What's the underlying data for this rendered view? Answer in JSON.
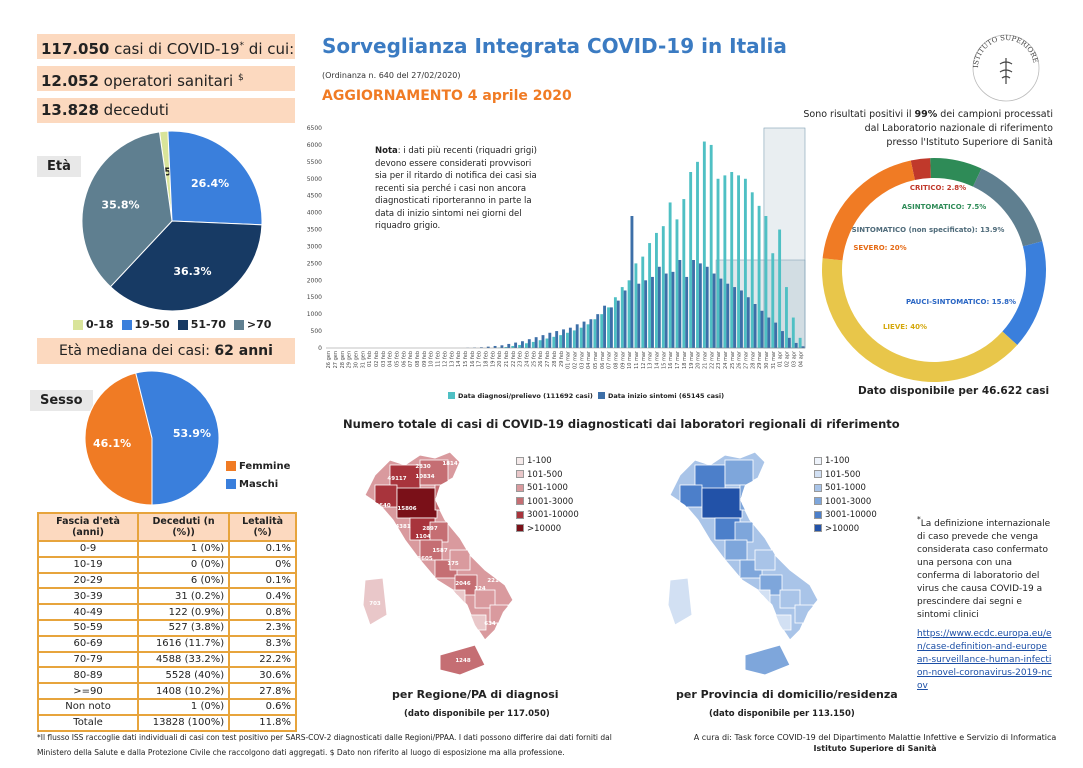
{
  "header": {
    "title": "Sorveglianza Integrata COVID-19 in Italia",
    "ordinance": "(Ordinanza n. 640 del 27/02/2020)",
    "update": "AGGIORNAMENTO 4 aprile 2020",
    "logo_text": "ISTITUTO SUPERIORE DI SANITÀ"
  },
  "summary": {
    "cases_num": "117.050",
    "cases_text": "casi di COVID-19",
    "cases_suffix": "di cui:",
    "cases_mark": "*",
    "healthcare_num": "12.052",
    "healthcare_text": "operatori sanitari",
    "healthcare_mark": "$",
    "deaths_num": "13.828",
    "deaths_text": "deceduti"
  },
  "age": {
    "label": "Età",
    "median_label": "Età mediana dei casi:",
    "median_value": "62 anni"
  },
  "sex": {
    "label": "Sesso"
  },
  "age_table": {
    "headers": [
      "Fascia d'età (anni)",
      "Deceduti (n (%))",
      "Letalità (%)"
    ],
    "rows": [
      [
        "0-9",
        "1 (0%)",
        "0.1%"
      ],
      [
        "10-19",
        "0 (0%)",
        "0%"
      ],
      [
        "20-29",
        "6 (0%)",
        "0.1%"
      ],
      [
        "30-39",
        "31 (0.2%)",
        "0.4%"
      ],
      [
        "40-49",
        "122 (0.9%)",
        "0.8%"
      ],
      [
        "50-59",
        "527 (3.8%)",
        "2.3%"
      ],
      [
        "60-69",
        "1616 (11.7%)",
        "8.3%"
      ],
      [
        "70-79",
        "4588 (33.2%)",
        "22.2%"
      ],
      [
        "80-89",
        "5528 (40%)",
        "30.6%"
      ],
      [
        ">=90",
        "1408 (10.2%)",
        "27.8%"
      ],
      [
        "Non noto",
        "1 (0%)",
        "0.6%"
      ],
      [
        "Totale",
        "13828 (100%)",
        "11.8%"
      ]
    ]
  },
  "note": {
    "bold": "Nota",
    "text": ": i dati più recenti (riquadri grigi) devono essere considerati provvisori sia per il ritardo di notifica dei casi sia recenti sia perché i casi non ancora diagnosticati riporteranno in parte la data di inizio sintomi nei giorni del riquadro grigio."
  },
  "lab": {
    "line1a": "Sono risultati positivi il ",
    "line1b": "99%",
    "line1c": " dei campioni processati",
    "line2": "dal Laboratorio nazionale di riferimento",
    "line3": "presso l'Istituto Superiore di Sanità",
    "available": "Dato disponibile per 46.622 casi"
  },
  "maps": {
    "title": "Numero totale di casi di COVID-19 diagnosticati dai laboratori regionali di riferimento",
    "region_caption": "per Regione/PA di diagnosi",
    "region_sub": "(dato disponibile per 117.050)",
    "province_caption": "per Provincia di domicilio/residenza",
    "province_sub": "(dato disponibile per 113.150)",
    "legend": [
      "1-100",
      "101-500",
      "501-1000",
      "1001-3000",
      "3001-10000",
      ">10000"
    ],
    "region_colors": [
      "#f5eaea",
      "#e9c7c9",
      "#d99a9e",
      "#c56e73",
      "#a8343c",
      "#7a1018"
    ],
    "province_colors": [
      "#eef3fb",
      "#d2e0f3",
      "#a9c4e8",
      "#7ea6db",
      "#4c7fca",
      "#2252a8"
    ],
    "region_values": [
      {
        "label": "1581"
      },
      {
        "label": "1814"
      },
      {
        "label": "2830"
      },
      {
        "label": "835"
      },
      {
        "label": "49117"
      },
      {
        "label": "10834"
      },
      {
        "label": "9993"
      },
      {
        "label": "2640"
      },
      {
        "label": "15806"
      },
      {
        "label": "4381"
      },
      {
        "label": "2897"
      },
      {
        "label": "1104"
      },
      {
        "label": "1587"
      },
      {
        "label": "3605"
      },
      {
        "label": "175"
      },
      {
        "label": "2046"
      },
      {
        "label": "2216"
      },
      {
        "label": "124"
      },
      {
        "label": "634"
      },
      {
        "label": "703"
      },
      {
        "label": "1248"
      }
    ]
  },
  "definition": {
    "mark": "*",
    "text": "La definizione internazionale di caso prevede che venga considerata caso confermato una persona con una conferma di laboratorio del virus che causa COVID-19 a prescindere dai segni e sintomi clinici",
    "link": "https://www.ecdc.europa.eu/en/case-definition-and-european-surveillance-human-infection-novel-coronavirus-2019-ncov"
  },
  "footer": {
    "left1": "*Il flusso ISS raccoglie dati individuali di casi con test positivo per SARS-COV-2 diagnosticati dalle Regioni/PPAA. I dati possono differire dai dati forniti dal",
    "left2": "Ministero della Salute e dalla Protezione Civile che raccolgono dati aggregati.",
    "left2b": "$ Dato non riferito al luogo di esposizione ma alla professione.",
    "right1": "A cura di:  Task force  COVID-19 del Dipartimento Malattie Infettive e Servizio di Informatica",
    "right2": "Istituto Superiore di Sanità"
  },
  "colors": {
    "orange": "#f07b24",
    "blue_title": "#3b7bc2",
    "peach": "#fcd9bf",
    "teal": "#4fc0c4",
    "darkblue": "#3d6fa8"
  },
  "chart_data": [
    {
      "type": "pie",
      "name": "age",
      "labels": [
        "0-18",
        "19-50",
        "51-70",
        ">70"
      ],
      "values": [
        1.5,
        26.4,
        36.3,
        35.8
      ],
      "colors": [
        "#d9e49a",
        "#3a7fdc",
        "#173a64",
        "#5f7f90"
      ]
    },
    {
      "type": "pie",
      "name": "sex",
      "labels": [
        "Femmine",
        "Maschi"
      ],
      "values": [
        46.1,
        53.9
      ],
      "colors": [
        "#f07b24",
        "#3a7fdc"
      ]
    },
    {
      "type": "pie",
      "name": "clinical_status",
      "labels": [
        "CRITICO: 2.8%",
        "ASINTOMATICO: 7.5%",
        "SINTOMATICO (non specificato): 13.9%",
        "PAUCI-SINTOMATICO: 15.8%",
        "LIEVE: 40%",
        "SEVERO: 20%"
      ],
      "values": [
        2.8,
        7.5,
        13.9,
        15.8,
        40,
        20
      ],
      "colors": [
        "#c0392b",
        "#2e8b57",
        "#5f7f90",
        "#3a7fdc",
        "#e8c64a",
        "#f07b24"
      ]
    },
    {
      "type": "bar",
      "name": "daily_cases",
      "categories": [
        "26 gen",
        "27 gen",
        "28 gen",
        "29 gen",
        "30 gen",
        "31 gen",
        "01 feb",
        "02 feb",
        "03 feb",
        "04 feb",
        "05 feb",
        "06 feb",
        "07 feb",
        "08 feb",
        "09 feb",
        "10 feb",
        "11 feb",
        "12 feb",
        "13 feb",
        "14 feb",
        "15 feb",
        "16 feb",
        "17 feb",
        "18 feb",
        "19 feb",
        "20 feb",
        "21 feb",
        "22 feb",
        "23 feb",
        "24 feb",
        "25 feb",
        "26 feb",
        "27 feb",
        "28 feb",
        "29 feb",
        "01 mar",
        "02 mar",
        "03 mar",
        "04 mar",
        "05 mar",
        "06 mar",
        "07 mar",
        "08 mar",
        "09 mar",
        "10 mar",
        "11 mar",
        "12 mar",
        "13 mar",
        "14 mar",
        "15 mar",
        "16 mar",
        "17 mar",
        "18 mar",
        "19 mar",
        "20 mar",
        "21 mar",
        "22 mar",
        "23 mar",
        "24 mar",
        "25 mar",
        "26 mar",
        "27 mar",
        "28 mar",
        "29 mar",
        "30 mar",
        "31 mar",
        "01 apr",
        "02 apr",
        "03 apr",
        "04 apr"
      ],
      "series": [
        {
          "name": "Data diagnosi/prelievo (111692 casi)",
          "color": "#4fc0c4",
          "values": [
            0,
            0,
            0,
            0,
            0,
            0,
            0,
            0,
            0,
            0,
            0,
            0,
            0,
            0,
            0,
            0,
            0,
            0,
            0,
            0,
            0,
            0,
            0,
            0,
            0,
            10,
            30,
            60,
            90,
            140,
            180,
            230,
            280,
            330,
            380,
            450,
            520,
            600,
            700,
            850,
            1000,
            1200,
            1500,
            1800,
            2000,
            2500,
            2700,
            3100,
            3400,
            3600,
            4300,
            3800,
            4400,
            5200,
            5500,
            6100,
            6000,
            5000,
            5100,
            5200,
            5100,
            5000,
            4600,
            4200,
            3900,
            2800,
            3500,
            1800,
            900,
            300
          ]
        },
        {
          "name": "Data inizio sintomi (65145 casi)",
          "color": "#3d6fa8",
          "values": [
            0,
            0,
            0,
            0,
            0,
            0,
            0,
            0,
            0,
            0,
            0,
            0,
            0,
            0,
            0,
            0,
            0,
            0,
            0,
            0,
            5,
            10,
            20,
            40,
            60,
            80,
            120,
            160,
            200,
            260,
            320,
            380,
            450,
            500,
            550,
            600,
            700,
            780,
            850,
            1000,
            1250,
            1200,
            1400,
            1700,
            3900,
            1900,
            2000,
            2100,
            2400,
            2200,
            2250,
            2600,
            2100,
            2600,
            2500,
            2400,
            2200,
            2050,
            1900,
            1800,
            1700,
            1500,
            1300,
            1100,
            900,
            750,
            500,
            300,
            150,
            50
          ]
        }
      ],
      "ylim": [
        0,
        6500
      ],
      "yticks": [
        0,
        500,
        1000,
        1500,
        2000,
        2500,
        3000,
        3500,
        4000,
        4500,
        5000,
        5500,
        6000,
        6500
      ]
    }
  ]
}
